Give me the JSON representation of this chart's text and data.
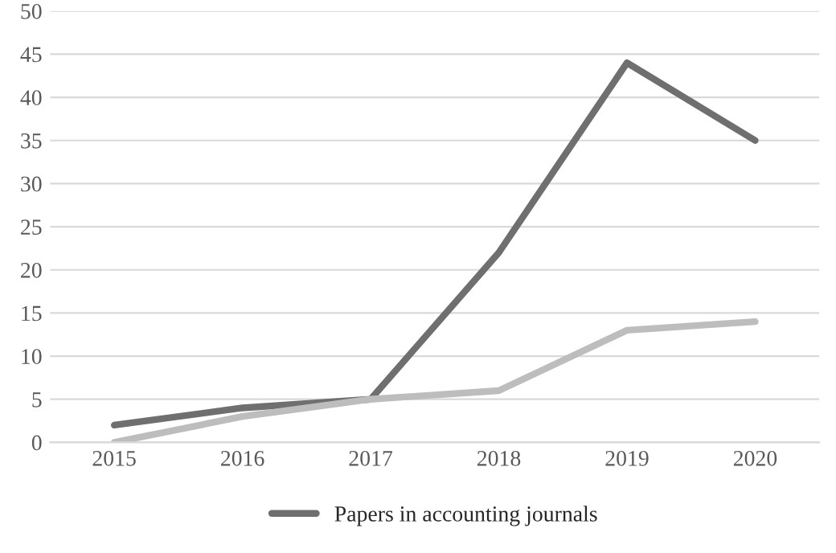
{
  "chart_data": {
    "type": "line",
    "categories": [
      "2015",
      "2016",
      "2017",
      "2018",
      "2019",
      "2020"
    ],
    "series": [
      {
        "name": "Papers in accounting journals",
        "color": "#6f6f6f",
        "values": [
          2,
          4,
          5,
          22,
          44,
          35
        ]
      },
      {
        "color": "#bdbdbd",
        "values": [
          0,
          3,
          5,
          6,
          13,
          14
        ]
      }
    ],
    "ylim": [
      0,
      50
    ],
    "yticks": [
      0,
      5,
      10,
      15,
      20,
      25,
      30,
      35,
      40,
      45,
      50
    ],
    "grid": "y",
    "legend": "bottom",
    "marker": "none",
    "line_style": "solid"
  }
}
